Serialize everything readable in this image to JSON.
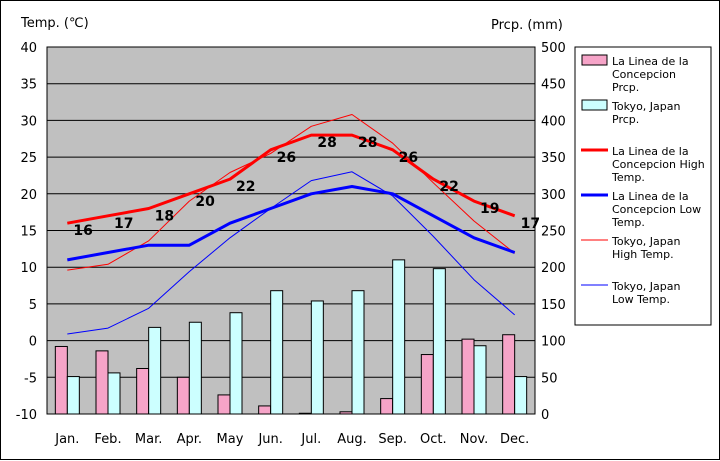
{
  "chart_data": {
    "type": "bar+line",
    "left_axis_label": "Temp. (℃)",
    "right_axis_label": "Prcp. (mm)",
    "temp_ticks": [
      "40",
      "35",
      "30",
      "25",
      "20",
      "15",
      "10",
      "5",
      "0",
      "-5",
      "-10"
    ],
    "prcp_ticks": [
      "500",
      "450",
      "400",
      "350",
      "300",
      "250",
      "200",
      "150",
      "100",
      "50",
      "0"
    ],
    "temp_range": [
      -10,
      40
    ],
    "prcp_range": [
      0,
      500
    ],
    "grid": true,
    "legend_position": "right",
    "categories": [
      "Jan.",
      "Feb.",
      "Mar.",
      "Apr.",
      "May",
      "Jun.",
      "Jul.",
      "Aug.",
      "Sep.",
      "Oct.",
      "Nov.",
      "Dec."
    ],
    "bar_series": [
      {
        "name": "La Linea de la Concepcion Prcp.",
        "legend_lines": [
          "La Linea de la",
          "Concepcion",
          "Prcp."
        ],
        "color": "#f6a4c8",
        "values": [
          92,
          86,
          62,
          50,
          26,
          11,
          1,
          3,
          21,
          81,
          102,
          108
        ]
      },
      {
        "name": "Tokyo, Japan Prcp.",
        "legend_lines": [
          "Tokyo, Japan",
          "Prcp."
        ],
        "color": "#ccffff",
        "values": [
          51,
          56,
          118,
          125,
          138,
          168,
          154,
          168,
          210,
          198,
          93,
          51
        ]
      }
    ],
    "line_series": [
      {
        "name": "La Linea de la Concepcion High Temp.",
        "legend_lines": [
          "La Linea de la",
          "Concepcion High",
          "Temp."
        ],
        "color": "#ff0000",
        "width": 3,
        "values": [
          16,
          17,
          18,
          20,
          22,
          26,
          28,
          28,
          26,
          22,
          19,
          17
        ],
        "labels": [
          "16",
          "17",
          "18",
          "20",
          "22",
          "26",
          "28",
          "28",
          "26",
          "22",
          "19",
          "17"
        ]
      },
      {
        "name": "La Linea de la Concepcion Low Temp.",
        "legend_lines": [
          "La Linea de la",
          "Concepcion Low",
          "Temp."
        ],
        "color": "#0000ff",
        "width": 3,
        "values": [
          11,
          12,
          13,
          13,
          16,
          18,
          20,
          21,
          20,
          17,
          14,
          12
        ]
      },
      {
        "name": "Tokyo, Japan High Temp.",
        "legend_lines": [
          "Tokyo, Japan",
          "High Temp."
        ],
        "color": "#ff0000",
        "width": 1,
        "values": [
          9.6,
          10.4,
          13.6,
          19.0,
          22.9,
          25.5,
          29.2,
          30.8,
          26.9,
          21.5,
          16.3,
          11.9
        ]
      },
      {
        "name": "Tokyo, Japan Low Temp.",
        "legend_lines": [
          "Tokyo, Japan",
          "Low Temp."
        ],
        "color": "#0000ff",
        "width": 1,
        "values": [
          0.9,
          1.7,
          4.4,
          9.4,
          14.0,
          18.0,
          21.8,
          23.0,
          19.7,
          14.2,
          8.3,
          3.5
        ]
      }
    ]
  }
}
